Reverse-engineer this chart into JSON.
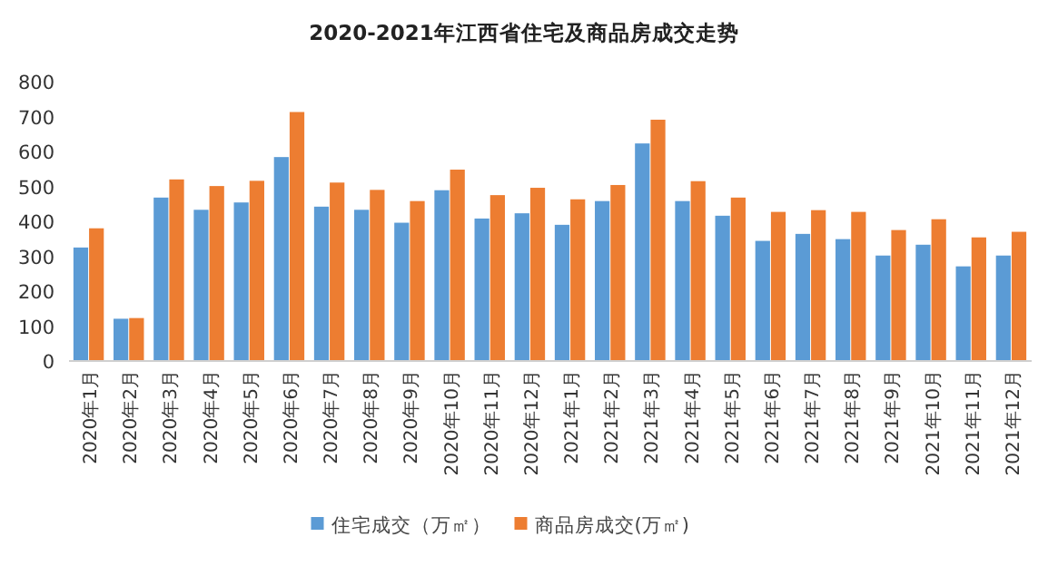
{
  "chart_data": {
    "type": "bar",
    "title": "2020-2021年江西省住宅及商品房成交走势",
    "categories": [
      "2020年1月",
      "2020年2月",
      "2020年3月",
      "2020年4月",
      "2020年5月",
      "2020年6月",
      "2020年7月",
      "2020年8月",
      "2020年9月",
      "2020年10月",
      "2020年11月",
      "2020年12月",
      "2021年1月",
      "2021年2月",
      "2021年3月",
      "2021年4月",
      "2021年5月",
      "2021年6月",
      "2021年7月",
      "2021年8月",
      "2021年9月",
      "2021年10月",
      "2021年11月",
      "2021年12月"
    ],
    "series": [
      {
        "name": "住宅成交（万㎡）",
        "color": "#5b9bd5",
        "values": [
          325,
          121,
          468,
          433,
          454,
          584,
          442,
          433,
          396,
          489,
          408,
          423,
          390,
          458,
          623,
          458,
          416,
          344,
          364,
          349,
          302,
          333,
          271,
          302
        ]
      },
      {
        "name": "商品房成交(万㎡)",
        "color": "#ed7d31",
        "values": [
          380,
          123,
          520,
          501,
          516,
          713,
          511,
          490,
          458,
          548,
          475,
          496,
          463,
          504,
          691,
          515,
          468,
          427,
          432,
          427,
          375,
          406,
          354,
          370
        ]
      }
    ],
    "ylim": [
      0,
      800
    ],
    "yticks": [
      0,
      100,
      200,
      300,
      400,
      500,
      600,
      700,
      800
    ],
    "legend": "bottom"
  }
}
